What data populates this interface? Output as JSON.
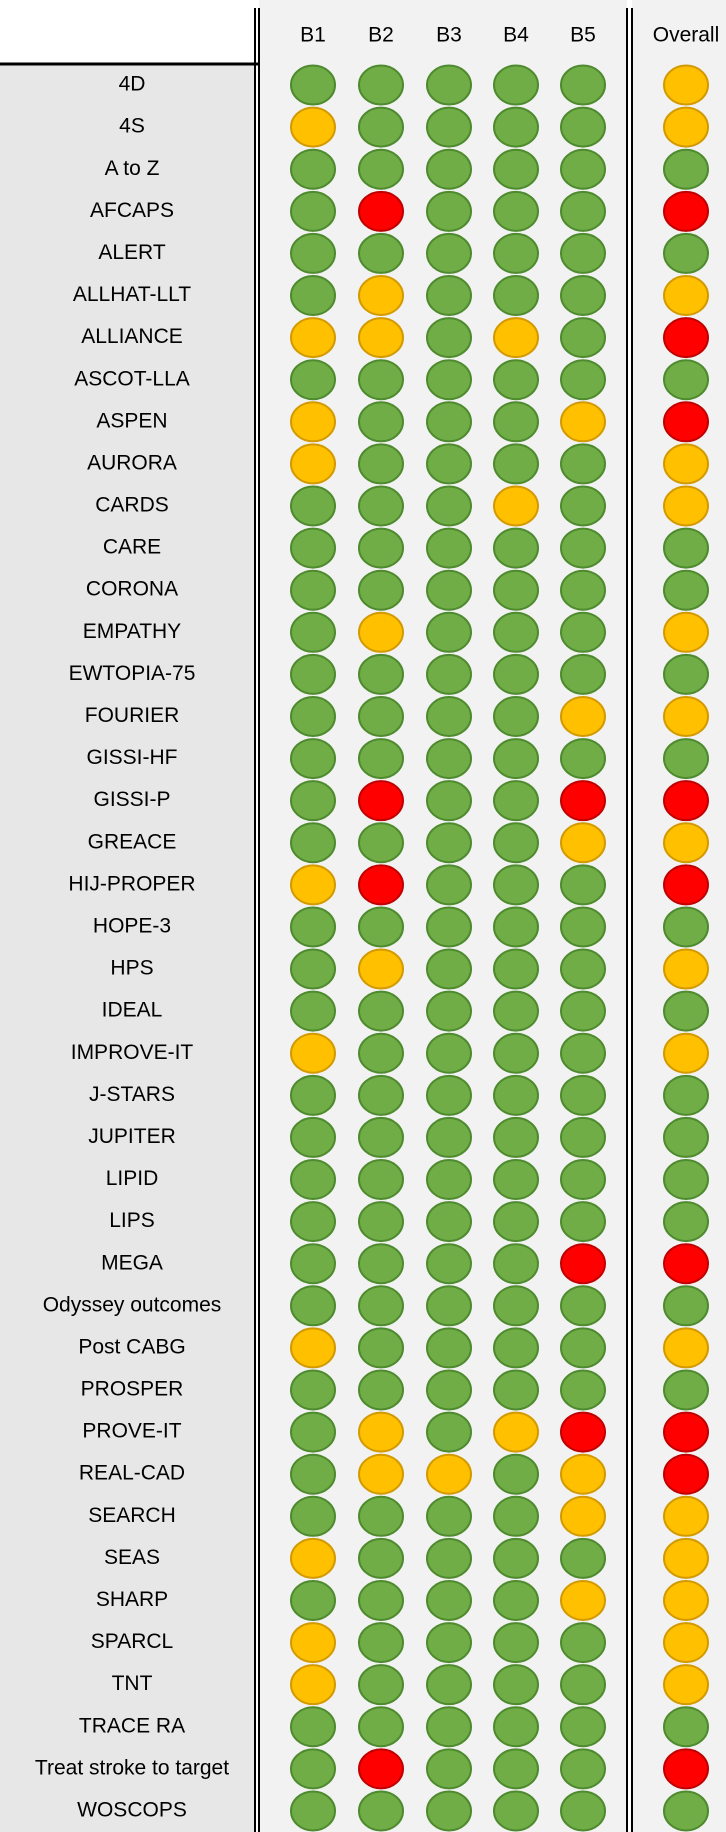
{
  "table": {
    "header": [
      "B1",
      "B2",
      "B3",
      "B4",
      "B5",
      "Overall"
    ],
    "rows": [
      {
        "label": "4D",
        "cells": [
          "#70ad47",
          "#70ad47",
          "#70ad47",
          "#70ad47",
          "#70ad47",
          "#ffc000"
        ]
      },
      {
        "label": "4S",
        "cells": [
          "#ffc000",
          "#70ad47",
          "#70ad47",
          "#70ad47",
          "#70ad47",
          "#ffc000"
        ]
      },
      {
        "label": "A to Z",
        "cells": [
          "#70ad47",
          "#70ad47",
          "#70ad47",
          "#70ad47",
          "#70ad47",
          "#70ad47"
        ]
      },
      {
        "label": "AFCAPS",
        "cells": [
          "#70ad47",
          "#ff0000",
          "#70ad47",
          "#70ad47",
          "#70ad47",
          "#ff0000"
        ]
      },
      {
        "label": "ALERT",
        "cells": [
          "#70ad47",
          "#70ad47",
          "#70ad47",
          "#70ad47",
          "#70ad47",
          "#70ad47"
        ]
      },
      {
        "label": "ALLHAT-LLT",
        "cells": [
          "#70ad47",
          "#ffc000",
          "#70ad47",
          "#70ad47",
          "#70ad47",
          "#ffc000"
        ]
      },
      {
        "label": "ALLIANCE",
        "cells": [
          "#ffc000",
          "#ffc000",
          "#70ad47",
          "#ffc000",
          "#70ad47",
          "#ff0000"
        ]
      },
      {
        "label": "ASCOT-LLA",
        "cells": [
          "#70ad47",
          "#70ad47",
          "#70ad47",
          "#70ad47",
          "#70ad47",
          "#70ad47"
        ]
      },
      {
        "label": "ASPEN",
        "cells": [
          "#ffc000",
          "#70ad47",
          "#70ad47",
          "#70ad47",
          "#ffc000",
          "#ff0000"
        ]
      },
      {
        "label": "AURORA",
        "cells": [
          "#ffc000",
          "#70ad47",
          "#70ad47",
          "#70ad47",
          "#70ad47",
          "#ffc000"
        ]
      },
      {
        "label": "CARDS",
        "cells": [
          "#70ad47",
          "#70ad47",
          "#70ad47",
          "#ffc000",
          "#70ad47",
          "#ffc000"
        ]
      },
      {
        "label": "CARE",
        "cells": [
          "#70ad47",
          "#70ad47",
          "#70ad47",
          "#70ad47",
          "#70ad47",
          "#70ad47"
        ]
      },
      {
        "label": "CORONA",
        "cells": [
          "#70ad47",
          "#70ad47",
          "#70ad47",
          "#70ad47",
          "#70ad47",
          "#70ad47"
        ]
      },
      {
        "label": "EMPATHY",
        "cells": [
          "#70ad47",
          "#ffc000",
          "#70ad47",
          "#70ad47",
          "#70ad47",
          "#ffc000"
        ]
      },
      {
        "label": "EWTOPIA-75",
        "cells": [
          "#70ad47",
          "#70ad47",
          "#70ad47",
          "#70ad47",
          "#70ad47",
          "#70ad47"
        ]
      },
      {
        "label": "FOURIER",
        "cells": [
          "#70ad47",
          "#70ad47",
          "#70ad47",
          "#70ad47",
          "#ffc000",
          "#ffc000"
        ]
      },
      {
        "label": "GISSI-HF",
        "cells": [
          "#70ad47",
          "#70ad47",
          "#70ad47",
          "#70ad47",
          "#70ad47",
          "#70ad47"
        ]
      },
      {
        "label": "GISSI-P",
        "cells": [
          "#70ad47",
          "#ff0000",
          "#70ad47",
          "#70ad47",
          "#ff0000",
          "#ff0000"
        ]
      },
      {
        "label": "GREACE",
        "cells": [
          "#70ad47",
          "#70ad47",
          "#70ad47",
          "#70ad47",
          "#ffc000",
          "#ffc000"
        ]
      },
      {
        "label": "HIJ-PROPER",
        "cells": [
          "#ffc000",
          "#ff0000",
          "#70ad47",
          "#70ad47",
          "#70ad47",
          "#ff0000"
        ]
      },
      {
        "label": "HOPE-3",
        "cells": [
          "#70ad47",
          "#70ad47",
          "#70ad47",
          "#70ad47",
          "#70ad47",
          "#70ad47"
        ]
      },
      {
        "label": "HPS",
        "cells": [
          "#70ad47",
          "#ffc000",
          "#70ad47",
          "#70ad47",
          "#70ad47",
          "#ffc000"
        ]
      },
      {
        "label": "IDEAL",
        "cells": [
          "#70ad47",
          "#70ad47",
          "#70ad47",
          "#70ad47",
          "#70ad47",
          "#70ad47"
        ]
      },
      {
        "label": "IMPROVE-IT",
        "cells": [
          "#ffc000",
          "#70ad47",
          "#70ad47",
          "#70ad47",
          "#70ad47",
          "#ffc000"
        ]
      },
      {
        "label": "J-STARS",
        "cells": [
          "#70ad47",
          "#70ad47",
          "#70ad47",
          "#70ad47",
          "#70ad47",
          "#70ad47"
        ]
      },
      {
        "label": "JUPITER",
        "cells": [
          "#70ad47",
          "#70ad47",
          "#70ad47",
          "#70ad47",
          "#70ad47",
          "#70ad47"
        ]
      },
      {
        "label": "LIPID",
        "cells": [
          "#70ad47",
          "#70ad47",
          "#70ad47",
          "#70ad47",
          "#70ad47",
          "#70ad47"
        ]
      },
      {
        "label": "LIPS",
        "cells": [
          "#70ad47",
          "#70ad47",
          "#70ad47",
          "#70ad47",
          "#70ad47",
          "#70ad47"
        ]
      },
      {
        "label": "MEGA",
        "cells": [
          "#70ad47",
          "#70ad47",
          "#70ad47",
          "#70ad47",
          "#ff0000",
          "#ff0000"
        ]
      },
      {
        "label": "Odyssey outcomes",
        "cells": [
          "#70ad47",
          "#70ad47",
          "#70ad47",
          "#70ad47",
          "#70ad47",
          "#70ad47"
        ]
      },
      {
        "label": "Post CABG",
        "cells": [
          "#ffc000",
          "#70ad47",
          "#70ad47",
          "#70ad47",
          "#70ad47",
          "#ffc000"
        ]
      },
      {
        "label": "PROSPER",
        "cells": [
          "#70ad47",
          "#70ad47",
          "#70ad47",
          "#70ad47",
          "#70ad47",
          "#70ad47"
        ]
      },
      {
        "label": "PROVE-IT",
        "cells": [
          "#70ad47",
          "#ffc000",
          "#70ad47",
          "#ffc000",
          "#ff0000",
          "#ff0000"
        ]
      },
      {
        "label": "REAL-CAD",
        "cells": [
          "#70ad47",
          "#ffc000",
          "#ffc000",
          "#70ad47",
          "#ffc000",
          "#ff0000"
        ]
      },
      {
        "label": "SEARCH",
        "cells": [
          "#70ad47",
          "#70ad47",
          "#70ad47",
          "#70ad47",
          "#ffc000",
          "#ffc000"
        ]
      },
      {
        "label": "SEAS",
        "cells": [
          "#ffc000",
          "#70ad47",
          "#70ad47",
          "#70ad47",
          "#70ad47",
          "#ffc000"
        ]
      },
      {
        "label": "SHARP",
        "cells": [
          "#70ad47",
          "#70ad47",
          "#70ad47",
          "#70ad47",
          "#ffc000",
          "#ffc000"
        ]
      },
      {
        "label": "SPARCL",
        "cells": [
          "#ffc000",
          "#70ad47",
          "#70ad47",
          "#70ad47",
          "#70ad47",
          "#ffc000"
        ]
      },
      {
        "label": "TNT",
        "cells": [
          "#ffc000",
          "#70ad47",
          "#70ad47",
          "#70ad47",
          "#70ad47",
          "#ffc000"
        ]
      },
      {
        "label": "TRACE RA",
        "cells": [
          "#70ad47",
          "#70ad47",
          "#70ad47",
          "#70ad47",
          "#70ad47",
          "#70ad47"
        ]
      },
      {
        "label": "Treat stroke to target",
        "cells": [
          "#70ad47",
          "#ff0000",
          "#70ad47",
          "#70ad47",
          "#70ad47",
          "#ff0000"
        ]
      },
      {
        "label": "WOSCOPS",
        "cells": [
          "#70ad47",
          "#70ad47",
          "#70ad47",
          "#70ad47",
          "#70ad47",
          "#70ad47"
        ]
      }
    ]
  }
}
